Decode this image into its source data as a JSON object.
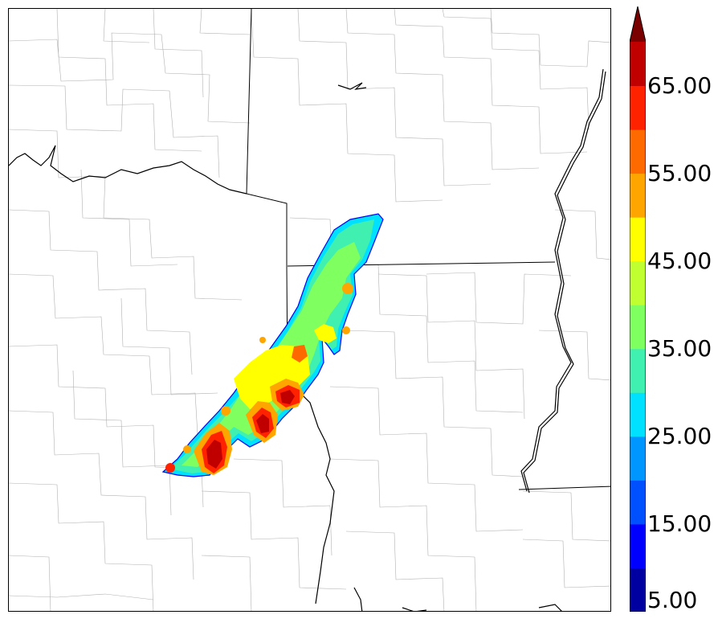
{
  "colorbar": {
    "labels": [
      "5.00",
      "15.00",
      "25.00",
      "35.00",
      "45.00",
      "55.00",
      "65.00"
    ],
    "min": 5,
    "max": 70,
    "step": 5,
    "extend": "max",
    "colors": [
      "#0000a0",
      "#0000ff",
      "#0050ff",
      "#0096ff",
      "#00e0ff",
      "#40f0b0",
      "#80ff60",
      "#c0ff30",
      "#ffff00",
      "#ffa500",
      "#ff6a00",
      "#ff2200",
      "#c00000",
      "#7a0000"
    ]
  },
  "map": {
    "background": "#ffffff",
    "county_line_color": "#aaaaaa",
    "state_line_color": "#000000",
    "river_color": "#000000"
  }
}
